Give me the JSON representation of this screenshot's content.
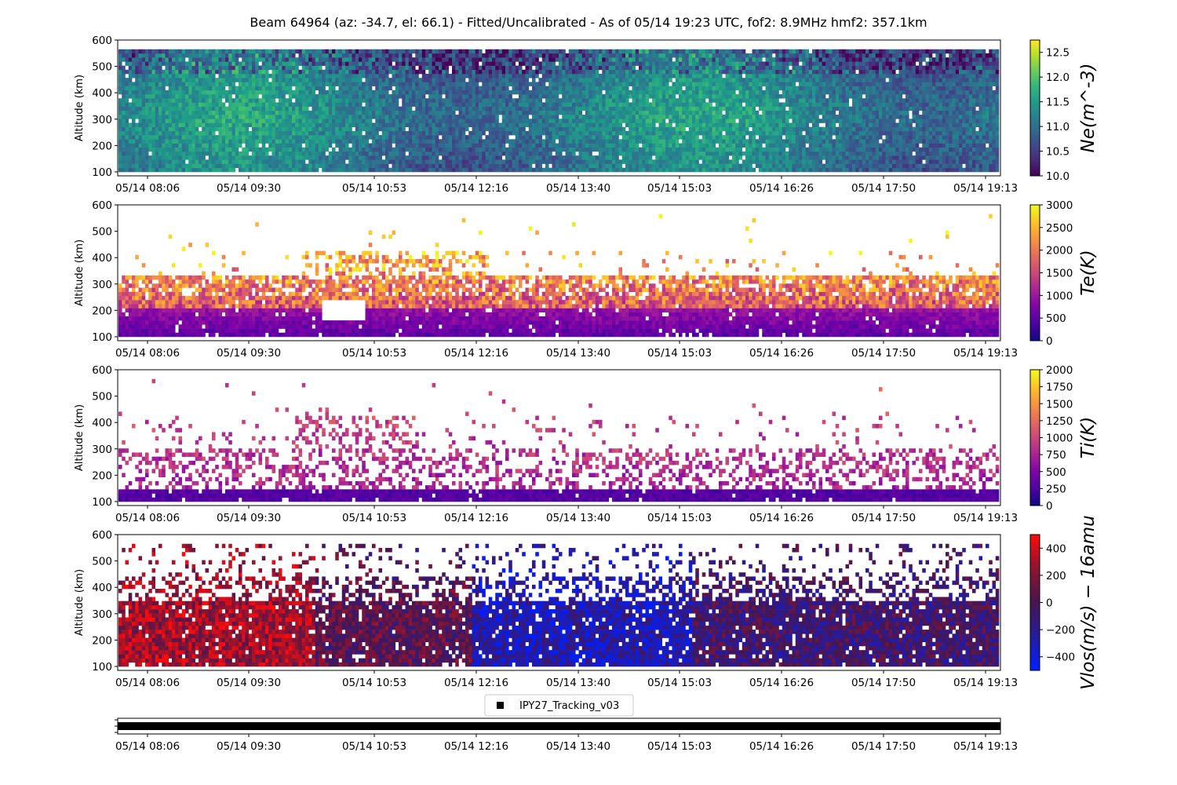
{
  "title": "Beam 64964 (az: -34.7, el: 66.1) - Fitted/Uncalibrated - As of 05/14 19:23 UTC, fof2: 8.9MHz  hmf2: 357.1km",
  "x_tick_labels": [
    "05/14 08:06",
    "05/14 09:30",
    "05/14 10:53",
    "05/14 12:16",
    "05/14 13:40",
    "05/14 15:03",
    "05/14 16:26",
    "05/14 17:50",
    "05/14 19:13"
  ],
  "chart_data": [
    {
      "type": "heatmap",
      "ylabel": "Altitude (km)",
      "yticks": [
        100,
        200,
        300,
        400,
        500,
        600
      ],
      "ylim": [
        85,
        600
      ],
      "altitude_range_km": [
        100,
        565
      ],
      "colorbar": {
        "label": "Ne(m^-3)",
        "colormap": "viridis",
        "range": [
          10.0,
          12.75
        ],
        "ticks": [
          "10.0",
          "10.5",
          "11.0",
          "11.5",
          "12.0",
          "12.5"
        ]
      }
    },
    {
      "type": "heatmap",
      "ylabel": "Altitude (km)",
      "yticks": [
        100,
        200,
        300,
        400,
        500,
        600
      ],
      "ylim": [
        85,
        600
      ],
      "altitude_range_km": [
        100,
        565
      ],
      "colorbar": {
        "label": "Te(K)",
        "colormap": "plasma",
        "range": [
          0,
          3000
        ],
        "ticks": [
          "0",
          "500",
          "1000",
          "1500",
          "2000",
          "2500",
          "3000"
        ]
      }
    },
    {
      "type": "heatmap",
      "ylabel": "Altitude (km)",
      "yticks": [
        100,
        200,
        300,
        400,
        500,
        600
      ],
      "ylim": [
        85,
        600
      ],
      "altitude_range_km": [
        100,
        565
      ],
      "colorbar": {
        "label": "Ti(K)",
        "colormap": "plasma",
        "range": [
          0,
          2000
        ],
        "ticks": [
          "0",
          "250",
          "500",
          "750",
          "1000",
          "1250",
          "1500",
          "1750",
          "2000"
        ]
      }
    },
    {
      "type": "heatmap",
      "ylabel": "Altitude (km)",
      "yticks": [
        100,
        200,
        300,
        400,
        500,
        600
      ],
      "ylim": [
        85,
        600
      ],
      "altitude_range_km": [
        100,
        565
      ],
      "colorbar": {
        "label": "Vlos(m/s) − 16amu",
        "colormap": "blue-dark-red",
        "range": [
          -500,
          500
        ],
        "ticks": [
          "−400",
          "−200",
          "0",
          "200",
          "400"
        ]
      }
    }
  ],
  "legend": {
    "label": "IPY27_Tracking_v03",
    "marker": "square",
    "color": "#000000"
  },
  "mode_bar": {
    "label": "IPY27_Tracking_v03",
    "color": "#000000",
    "coverage": "full"
  }
}
